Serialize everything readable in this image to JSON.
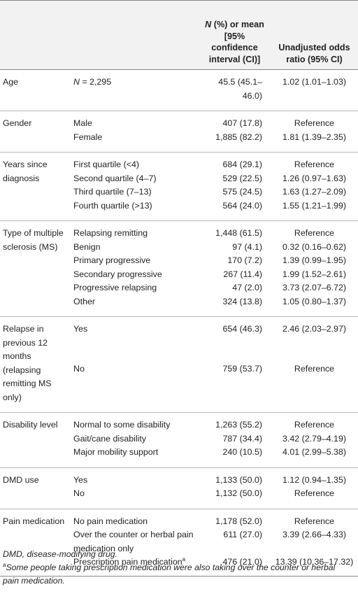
{
  "header": {
    "col3_n": "N",
    "col3_rest": " (%) or mean [95% confidence interval (CI)]",
    "col4": "Unadjusted odds ratio (95% CI)"
  },
  "rows": [
    {
      "group": "Age",
      "category_prefix": "N",
      "category": " = 2,295",
      "value": "45.5 (45.1–46.0)",
      "or": "1.02 (1.01–1.03)"
    },
    {
      "group": "Gender",
      "category": "Male",
      "value": "407 (17.8)",
      "or": "Reference"
    },
    {
      "category": "Female",
      "value": "1,885 (82.2)",
      "or": "1.81 (1.39–2.35)"
    },
    {
      "group": "Years since diagnosis",
      "category": "First quartile (<4)",
      "value": "684 (29.1)",
      "or": "Reference"
    },
    {
      "category": "Second quartile (4–7)",
      "value": "529 (22.5)",
      "or": "1.26 (0.97–1.63)"
    },
    {
      "category": "Third quartile (7–13)",
      "value": "575 (24.5)",
      "or": "1.63 (1.27–2.09)"
    },
    {
      "category": "Fourth quartile (>13)",
      "value": "564 (24.0)",
      "or": "1.55 (1.21–1.99)"
    },
    {
      "group": "Type of multiple sclerosis (MS)",
      "category": "Relapsing remitting",
      "value": "1,448 (61.5)",
      "or": "Reference"
    },
    {
      "category": "Benign",
      "value": "97 (4.1)",
      "or": "0.32 (0.16–0.62)"
    },
    {
      "category": "Primary progressive",
      "value": "170 (7.2)",
      "or": "1.39 (0.99–1.95)"
    },
    {
      "category": "Secondary progressive",
      "value": "267 (11.4)",
      "or": "1.99 (1.52–2.61)"
    },
    {
      "category": "Progressive relapsing",
      "value": "47 (2.0)",
      "or": "3.73 (2.07–6.72)"
    },
    {
      "category": "Other",
      "value": "324 (13.8)",
      "or": "1.05 (0.80–1.37)"
    },
    {
      "group": "Relapse in previous 12 months (relapsing remitting MS only)",
      "category": "Yes",
      "value": "654 (46.3)",
      "or": "2.46 (2.03–2.97)"
    },
    {
      "category": "No",
      "value": "759 (53.7)",
      "or": "Reference"
    },
    {
      "group": "Disability level",
      "category": "Normal to some disability",
      "value": "1,263 (55.2)",
      "or": "Reference"
    },
    {
      "category": "Gait/cane disability",
      "value": "787 (34.4)",
      "or": "3.42 (2.79–4.19)"
    },
    {
      "category": "Major mobility support",
      "value": "240 (10.5)",
      "or": "4.01 (2.99–5.38)"
    },
    {
      "group": "DMD use",
      "category": "Yes",
      "value": "1,133 (50.0)",
      "or": "1.12 (0.94–1.35)"
    },
    {
      "category": "No",
      "value": "1,132 (50.0)",
      "or": "Reference"
    },
    {
      "group": "Pain medication",
      "category": "No pain medication",
      "value": "1,178 (52.0)",
      "or": "Reference"
    },
    {
      "category": "Over the counter or herbal pain medication only",
      "value": "611 (27.0)",
      "or": "3.39 (2.66–4.33)"
    },
    {
      "category": "Prescription pain medication",
      "category_sup": "a",
      "value": "476 (21.0)",
      "or": "13.39 (10.36–17.32)"
    }
  ],
  "footnotes": {
    "abbrev": "DMD, disease-modifying drug.",
    "note_a_marker": "a",
    "note_a": "Some people taking prescription medication were also taking over the counter or herbal pain medication."
  }
}
